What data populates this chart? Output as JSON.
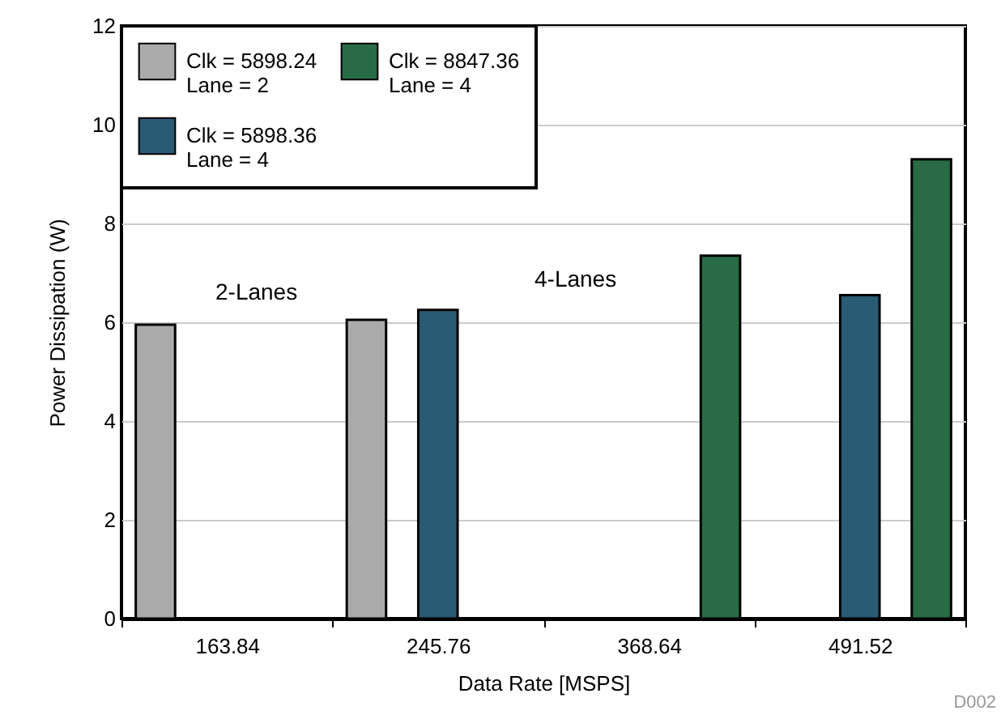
{
  "chart_data": {
    "type": "bar",
    "xlabel": "Data Rate [MSPS]",
    "ylabel": "Power Dissipation (W)",
    "categories": [
      "163.84",
      "245.76",
      "368.64",
      "491.52"
    ],
    "series": [
      {
        "name": "Clk = 5898.24\nLane = 2",
        "color": "#aaaaaa",
        "values": [
          5.95,
          6.05,
          null,
          null
        ]
      },
      {
        "name": "Clk = 5898.36\nLane = 4",
        "color": "#2a5b74",
        "values": [
          null,
          6.25,
          null,
          6.55
        ]
      },
      {
        "name": "Clk = 8847.36\nLane = 4",
        "color": "#286b45",
        "values": [
          null,
          null,
          7.35,
          9.3
        ]
      }
    ],
    "ylim": [
      0,
      12
    ],
    "yticks": [
      0,
      2,
      4,
      6,
      8,
      10,
      12
    ],
    "grid": "y",
    "legend": "top left",
    "annotations": [
      "2-Lanes",
      "4-Lanes",
      "D002"
    ]
  }
}
